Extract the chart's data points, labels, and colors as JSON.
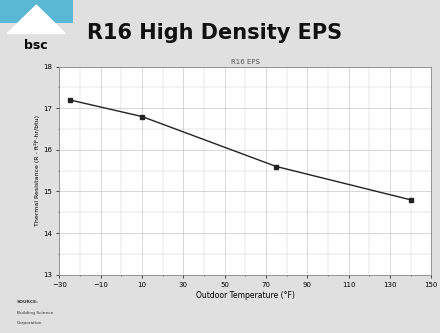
{
  "title": "R16 High Density EPS",
  "chart_title": "R16 EPS",
  "xlabel": "Outdoor Temperature (°F)",
  "ylabel": "Thermal Resistance (R - ft²F·hr/btu)",
  "xlim": [
    -30,
    150
  ],
  "ylim": [
    13,
    18
  ],
  "xticks": [
    -30,
    -10,
    10,
    30,
    50,
    70,
    90,
    110,
    130,
    150
  ],
  "yticks": [
    13,
    14,
    15,
    16,
    17,
    18
  ],
  "data_x": [
    -25,
    10,
    75,
    140
  ],
  "data_y": [
    17.2,
    16.8,
    15.6,
    14.8
  ],
  "line_color": "#222222",
  "marker": "s",
  "marker_size": 2.5,
  "grid_color": "#c8c8c8",
  "bg_color": "#ffffff",
  "panel_bg": "#e0e0e0",
  "header_title_color": "#111111",
  "bsc_teal": "#3aaa9a",
  "bsc_blue": "#5ab8d4",
  "left_stripe_color": "#5ab8c0",
  "source_text": "SOURCE:",
  "org_line1": "Building Science",
  "org_line2": "Corporation"
}
